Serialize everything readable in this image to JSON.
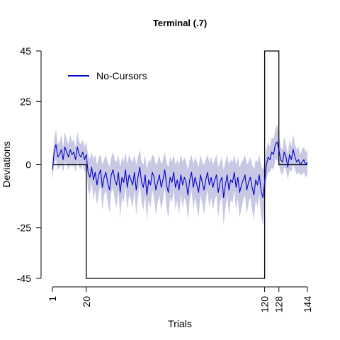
{
  "chart_data": {
    "type": "line",
    "title": "Terminal (.7)",
    "xlabel": "Trials",
    "ylabel": "Deviations",
    "xlim": [
      1,
      144
    ],
    "ylim": [
      -45,
      45
    ],
    "x_ticks": [
      1,
      20,
      120,
      128,
      144
    ],
    "y_ticks": [
      45,
      25,
      0,
      -25,
      -45
    ],
    "legend": {
      "position": "top-left",
      "entries": [
        "No-Cursors"
      ]
    },
    "colors": {
      "line": "#0000cc",
      "band": "#c8c8e4",
      "schedule": "#000000"
    },
    "schedule": {
      "name": "rotation",
      "points": [
        [
          1,
          0
        ],
        [
          20,
          0
        ],
        [
          20,
          -45
        ],
        [
          120,
          -45
        ],
        [
          120,
          45
        ],
        [
          128,
          45
        ],
        [
          128,
          0
        ],
        [
          144,
          0
        ]
      ]
    },
    "series": [
      {
        "name": "No-Cursors",
        "x": [
          1,
          2,
          3,
          4,
          5,
          6,
          7,
          8,
          9,
          10,
          11,
          12,
          13,
          14,
          15,
          16,
          17,
          18,
          19,
          20,
          21,
          22,
          23,
          24,
          25,
          26,
          27,
          28,
          29,
          30,
          31,
          32,
          33,
          34,
          35,
          36,
          37,
          38,
          39,
          40,
          41,
          42,
          43,
          44,
          45,
          46,
          47,
          48,
          49,
          50,
          51,
          52,
          53,
          54,
          55,
          56,
          57,
          58,
          59,
          60,
          61,
          62,
          63,
          64,
          65,
          66,
          67,
          68,
          69,
          70,
          71,
          72,
          73,
          74,
          75,
          76,
          77,
          78,
          79,
          80,
          81,
          82,
          83,
          84,
          85,
          86,
          87,
          88,
          89,
          90,
          91,
          92,
          93,
          94,
          95,
          96,
          97,
          98,
          99,
          100,
          101,
          102,
          103,
          104,
          105,
          106,
          107,
          108,
          109,
          110,
          111,
          112,
          113,
          114,
          115,
          116,
          117,
          118,
          119,
          120,
          121,
          122,
          123,
          124,
          125,
          126,
          127,
          128,
          129,
          130,
          131,
          132,
          133,
          134,
          135,
          136,
          137,
          138,
          139,
          140,
          141,
          142,
          143,
          144
        ],
        "values": [
          -2,
          5,
          8,
          3,
          4,
          6,
          2,
          7,
          5,
          3,
          6,
          4,
          5,
          2,
          7,
          4,
          3,
          5,
          2,
          4,
          -3,
          -5,
          -1,
          -6,
          -3,
          -8,
          -4,
          -2,
          -9,
          -5,
          -3,
          -7,
          -10,
          -4,
          -2,
          -6,
          -8,
          -3,
          -11,
          -5,
          -7,
          -2,
          -9,
          -4,
          -6,
          -8,
          -3,
          -10,
          -5,
          -1,
          -7,
          -9,
          -4,
          -12,
          -6,
          -8,
          -3,
          -5,
          -10,
          -7,
          -4,
          -9,
          -6,
          -2,
          -8,
          -11,
          -5,
          -7,
          -3,
          -9,
          -6,
          -10,
          -4,
          -8,
          -5,
          -7,
          -12,
          -6,
          -3,
          -9,
          -5,
          -8,
          -11,
          -4,
          -7,
          -10,
          -6,
          -3,
          -8,
          -5,
          -9,
          -6,
          -4,
          -11,
          -7,
          -5,
          -13,
          -8,
          -4,
          -10,
          -6,
          -7,
          -3,
          -9,
          -5,
          -11,
          -8,
          -6,
          -4,
          -10,
          -7,
          -5,
          -9,
          -12,
          -6,
          -8,
          -4,
          -10,
          -13,
          -7,
          0,
          3,
          2,
          5,
          4,
          8,
          9,
          6,
          2,
          1,
          5,
          3,
          -1,
          4,
          2,
          6,
          3,
          1,
          2,
          0,
          1,
          2,
          0,
          1
        ],
        "band_halfwidth": [
          4,
          5,
          6,
          5,
          5,
          6,
          5,
          6,
          5,
          5,
          6,
          5,
          5,
          5,
          6,
          5,
          5,
          5,
          5,
          5,
          7,
          7,
          6,
          8,
          7,
          8,
          7,
          6,
          9,
          7,
          7,
          8,
          9,
          7,
          7,
          8,
          9,
          7,
          10,
          8,
          8,
          7,
          9,
          8,
          8,
          9,
          7,
          10,
          8,
          7,
          8,
          9,
          8,
          10,
          8,
          9,
          7,
          8,
          10,
          8,
          8,
          9,
          8,
          7,
          9,
          10,
          8,
          8,
          7,
          9,
          8,
          10,
          8,
          9,
          8,
          8,
          10,
          8,
          7,
          9,
          8,
          9,
          10,
          8,
          8,
          10,
          8,
          7,
          9,
          8,
          9,
          8,
          8,
          10,
          8,
          8,
          11,
          9,
          8,
          10,
          8,
          8,
          7,
          9,
          8,
          10,
          9,
          8,
          8,
          10,
          8,
          8,
          9,
          10,
          8,
          9,
          8,
          10,
          11,
          8,
          6,
          6,
          5,
          6,
          6,
          6,
          7,
          6,
          5,
          5,
          6,
          5,
          5,
          6,
          5,
          6,
          5,
          5,
          5,
          4,
          5,
          5,
          5,
          5
        ]
      }
    ]
  }
}
